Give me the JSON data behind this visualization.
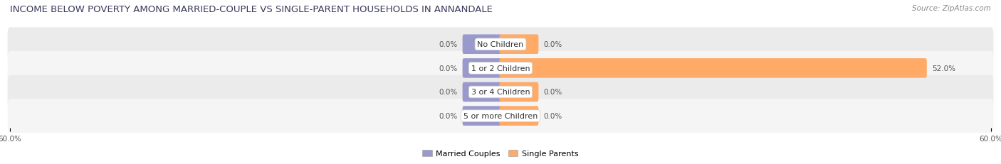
{
  "title": "INCOME BELOW POVERTY AMONG MARRIED-COUPLE VS SINGLE-PARENT HOUSEHOLDS IN ANNANDALE",
  "source": "Source: ZipAtlas.com",
  "categories": [
    "No Children",
    "1 or 2 Children",
    "3 or 4 Children",
    "5 or more Children"
  ],
  "married_values": [
    0.0,
    0.0,
    0.0,
    0.0
  ],
  "single_values": [
    0.0,
    52.0,
    0.0,
    0.0
  ],
  "max_val": 60.0,
  "married_color": "#9999cc",
  "single_color": "#ffaa66",
  "row_bg_even": "#ebebeb",
  "row_bg_odd": "#f5f5f5",
  "title_color": "#3a3a5c",
  "source_color": "#888888",
  "value_color": "#555555",
  "label_color": "#333333",
  "min_bar_width": 4.5,
  "title_fontsize": 9.5,
  "source_fontsize": 7.5,
  "label_fontsize": 8,
  "value_fontsize": 7.5,
  "axis_fontsize": 7.5,
  "legend_fontsize": 8
}
